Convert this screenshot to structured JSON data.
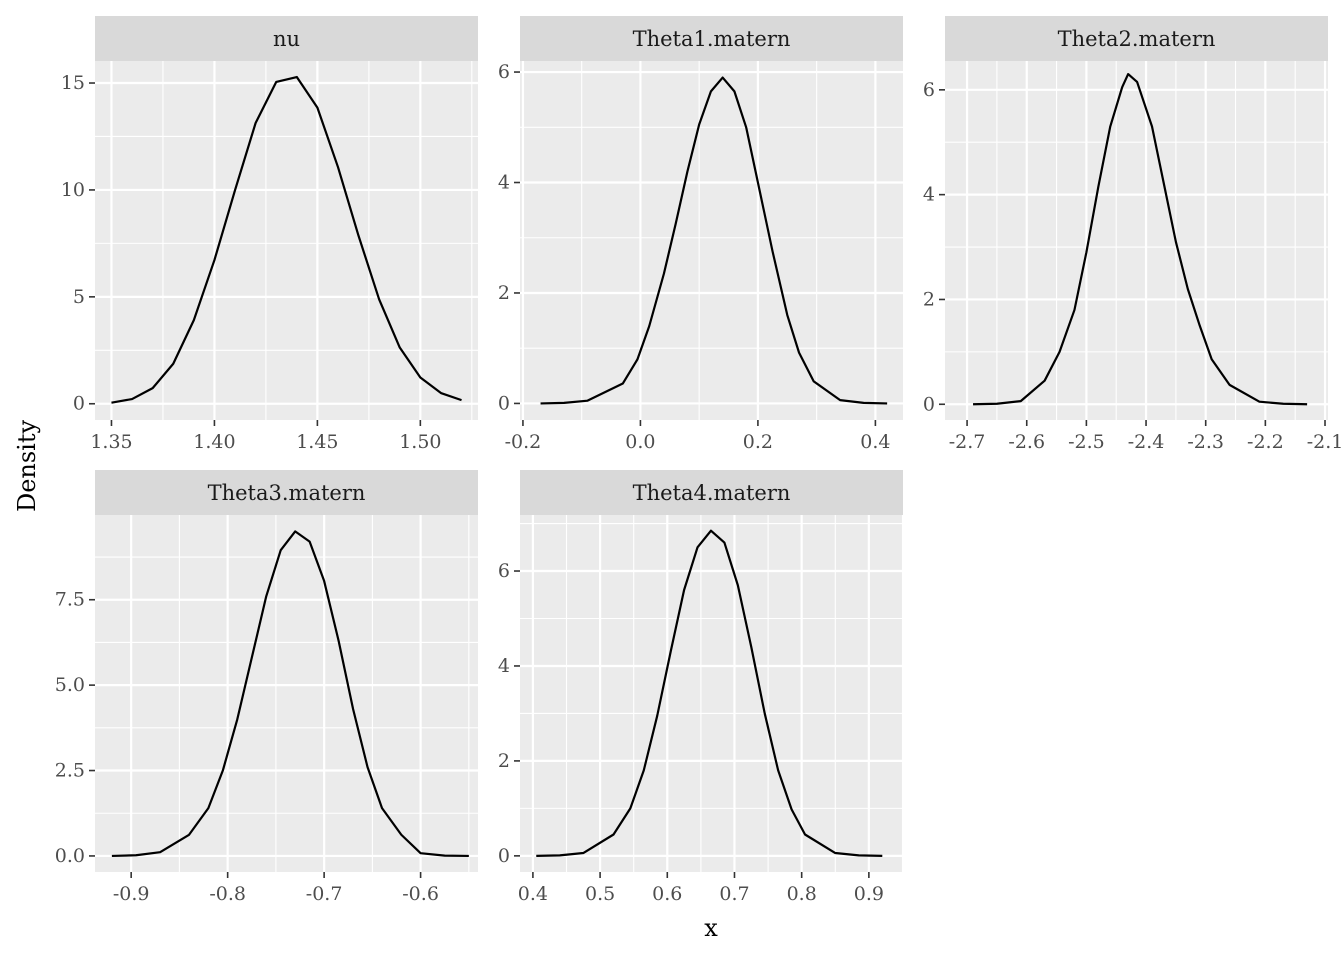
{
  "chart_data": {
    "type": "line",
    "xlabel": "x",
    "ylabel": "Density",
    "colors": {
      "panel_background": "#ebebeb",
      "strip_background": "#d9d9d9",
      "grid": "#ffffff",
      "line": "#000000",
      "tick": "#333333"
    },
    "grid": true,
    "panels": [
      {
        "name": "nu",
        "xlim": [
          1.342,
          1.528
        ],
        "ylim": [
          -0.76,
          16.03
        ],
        "x_ticks": [
          1.35,
          1.4,
          1.45,
          1.5
        ],
        "x_tick_labels": [
          "1.35",
          "1.40",
          "1.45",
          "1.50"
        ],
        "y_ticks": [
          0,
          5,
          10,
          15
        ],
        "y_tick_labels": [
          "0",
          "5",
          "10",
          "15"
        ],
        "x": [
          1.35,
          1.36,
          1.37,
          1.38,
          1.39,
          1.4,
          1.41,
          1.42,
          1.43,
          1.44,
          1.45,
          1.46,
          1.47,
          1.48,
          1.49,
          1.5,
          1.51,
          1.52
        ],
        "y": [
          0.05,
          0.22,
          0.73,
          1.87,
          3.91,
          6.72,
          9.99,
          13.13,
          15.05,
          15.28,
          13.85,
          11.07,
          7.85,
          4.88,
          2.63,
          1.23,
          0.5,
          0.17
        ]
      },
      {
        "name": "Theta1.matern",
        "xlim": [
          -0.205,
          0.447
        ],
        "ylim": [
          -0.3,
          6.2
        ],
        "x_ticks": [
          -0.2,
          0.0,
          0.2,
          0.4
        ],
        "x_tick_labels": [
          "-0.2",
          "0.0",
          "0.2",
          "0.4"
        ],
        "y_ticks": [
          0,
          2,
          4,
          6
        ],
        "y_tick_labels": [
          "0",
          "2",
          "4",
          "6"
        ],
        "x": [
          -0.17,
          -0.13,
          -0.09,
          -0.03,
          -0.005,
          0.015,
          0.04,
          0.06,
          0.08,
          0.1,
          0.12,
          0.14,
          0.16,
          0.18,
          0.2,
          0.225,
          0.25,
          0.27,
          0.295,
          0.34,
          0.38,
          0.42
        ],
        "y": [
          0.0,
          0.01,
          0.05,
          0.36,
          0.8,
          1.4,
          2.35,
          3.25,
          4.2,
          5.05,
          5.65,
          5.9,
          5.65,
          5.0,
          4.0,
          2.75,
          1.6,
          0.92,
          0.4,
          0.06,
          0.01,
          0.0
        ]
      },
      {
        "name": "Theta2.matern",
        "xlim": [
          -2.737,
          -2.095
        ],
        "ylim": [
          -0.3,
          6.55
        ],
        "x_ticks": [
          -2.7,
          -2.6,
          -2.5,
          -2.4,
          -2.3,
          -2.2,
          -2.1
        ],
        "x_tick_labels": [
          "-2.7",
          "-2.6",
          "-2.5",
          "-2.4",
          "-2.3",
          "-2.2",
          "-2.1"
        ],
        "y_ticks": [
          0,
          2,
          4,
          6
        ],
        "y_tick_labels": [
          "0",
          "2",
          "4",
          "6"
        ],
        "x": [
          -2.69,
          -2.65,
          -2.61,
          -2.57,
          -2.545,
          -2.52,
          -2.5,
          -2.48,
          -2.46,
          -2.44,
          -2.43,
          -2.415,
          -2.39,
          -2.37,
          -2.35,
          -2.33,
          -2.31,
          -2.29,
          -2.26,
          -2.21,
          -2.17,
          -2.13
        ],
        "y": [
          0.0,
          0.01,
          0.06,
          0.45,
          1.0,
          1.8,
          2.9,
          4.15,
          5.3,
          6.05,
          6.3,
          6.15,
          5.3,
          4.2,
          3.1,
          2.2,
          1.5,
          0.86,
          0.37,
          0.05,
          0.01,
          0.0
        ]
      },
      {
        "name": "Theta3.matern",
        "xlim": [
          -0.9375,
          -0.5405
        ],
        "ylim": [
          -0.47,
          9.98
        ],
        "x_ticks": [
          -0.9,
          -0.8,
          -0.7,
          -0.6
        ],
        "x_tick_labels": [
          "-0.9",
          "-0.8",
          "-0.7",
          "-0.6"
        ],
        "y_ticks": [
          0,
          2.5,
          5.0,
          7.5
        ],
        "y_tick_labels": [
          "0.0",
          "2.5",
          "5.0",
          "7.5"
        ],
        "x": [
          -0.92,
          -0.895,
          -0.87,
          -0.84,
          -0.82,
          -0.805,
          -0.79,
          -0.775,
          -0.76,
          -0.745,
          -0.73,
          -0.715,
          -0.7,
          -0.685,
          -0.67,
          -0.655,
          -0.64,
          -0.62,
          -0.6,
          -0.575,
          -0.55
        ],
        "y": [
          0.0,
          0.02,
          0.11,
          0.62,
          1.4,
          2.5,
          4.0,
          5.8,
          7.6,
          8.95,
          9.5,
          9.2,
          8.05,
          6.3,
          4.3,
          2.6,
          1.4,
          0.62,
          0.08,
          0.01,
          0.0
        ]
      },
      {
        "name": "Theta4.matern",
        "xlim": [
          0.3808,
          0.9508
        ],
        "ylim": [
          -0.34,
          7.18
        ],
        "x_ticks": [
          0.4,
          0.5,
          0.6,
          0.7,
          0.8,
          0.9
        ],
        "x_tick_labels": [
          "0.4",
          "0.5",
          "0.6",
          "0.7",
          "0.8",
          "0.9"
        ],
        "y_ticks": [
          0,
          2,
          4,
          6
        ],
        "y_tick_labels": [
          "0",
          "2",
          "4",
          "6"
        ],
        "x": [
          0.405,
          0.44,
          0.475,
          0.52,
          0.545,
          0.565,
          0.585,
          0.605,
          0.625,
          0.645,
          0.665,
          0.685,
          0.705,
          0.725,
          0.745,
          0.765,
          0.785,
          0.805,
          0.85,
          0.885,
          0.92
        ],
        "y": [
          0.0,
          0.01,
          0.06,
          0.45,
          1.0,
          1.8,
          2.95,
          4.3,
          5.6,
          6.5,
          6.85,
          6.6,
          5.7,
          4.4,
          3.0,
          1.8,
          0.98,
          0.45,
          0.06,
          0.01,
          0.0
        ]
      }
    ]
  }
}
